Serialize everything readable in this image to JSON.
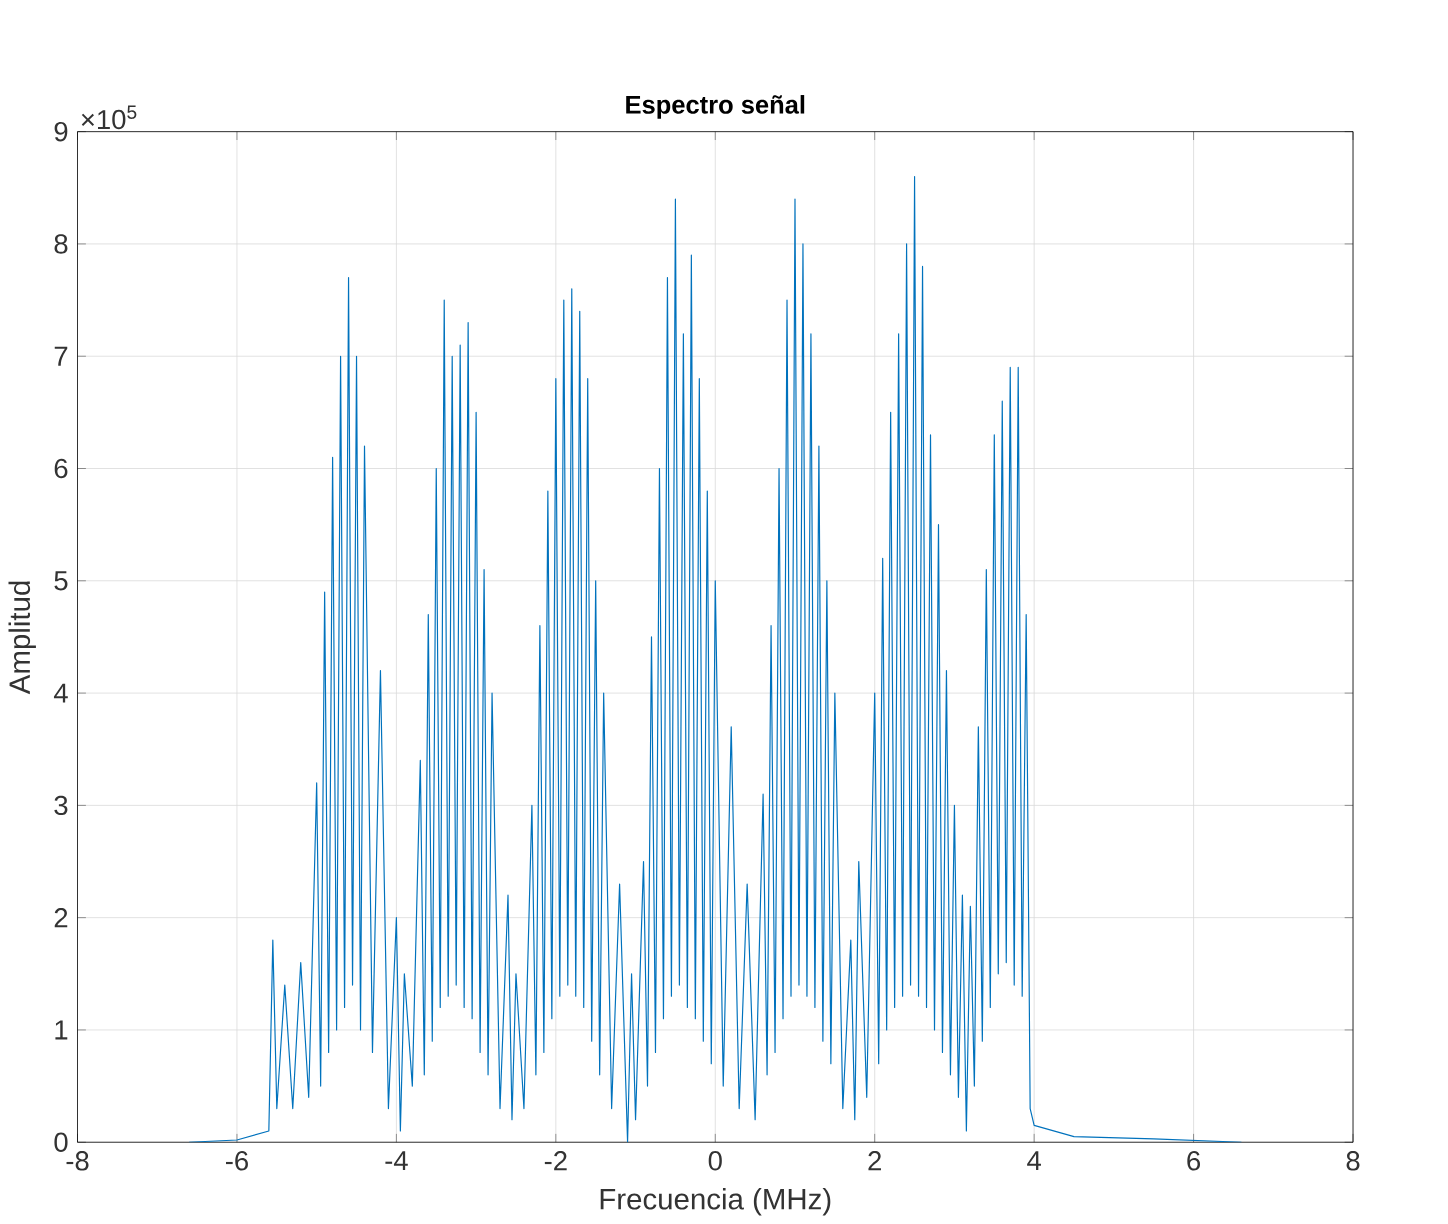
{
  "chart_data": {
    "type": "line",
    "title": "Espectro señal",
    "xlabel": "Frecuencia (MHz)",
    "ylabel": "Amplitud",
    "annotations": [
      "×10$^{5}$"
    ],
    "xlim": [
      -8,
      8
    ],
    "xticks": [
      -8,
      -6,
      -4,
      -2,
      0,
      2,
      4,
      6,
      8
    ],
    "ylim": [
      0,
      9
    ],
    "yticks": [
      0,
      1,
      2,
      3,
      4,
      5,
      6,
      7,
      8,
      9
    ],
    "grid": true,
    "series": [
      {
        "color": "#0072bd",
        "x": [
          -6.6,
          -6.0,
          -5.6,
          -5.55,
          -5.5,
          -5.4,
          -5.3,
          -5.2,
          -5.1,
          -5.0,
          -4.95,
          -4.9,
          -4.85,
          -4.8,
          -4.75,
          -4.7,
          -4.65,
          -4.6,
          -4.55,
          -4.5,
          -4.45,
          -4.4,
          -4.3,
          -4.2,
          -4.1,
          -4.0,
          -3.95,
          -3.9,
          -3.8,
          -3.7,
          -3.65,
          -3.6,
          -3.55,
          -3.5,
          -3.45,
          -3.4,
          -3.35,
          -3.3,
          -3.25,
          -3.2,
          -3.15,
          -3.1,
          -3.05,
          -3.0,
          -2.95,
          -2.9,
          -2.85,
          -2.8,
          -2.7,
          -2.6,
          -2.55,
          -2.5,
          -2.4,
          -2.3,
          -2.25,
          -2.2,
          -2.15,
          -2.1,
          -2.05,
          -2.0,
          -1.95,
          -1.9,
          -1.85,
          -1.8,
          -1.75,
          -1.7,
          -1.65,
          -1.6,
          -1.55,
          -1.5,
          -1.45,
          -1.4,
          -1.3,
          -1.2,
          -1.1,
          -1.05,
          -1.0,
          -0.9,
          -0.85,
          -0.8,
          -0.75,
          -0.7,
          -0.65,
          -0.6,
          -0.55,
          -0.5,
          -0.45,
          -0.4,
          -0.35,
          -0.3,
          -0.25,
          -0.2,
          -0.15,
          -0.1,
          -0.05,
          0.0,
          0.1,
          0.2,
          0.3,
          0.4,
          0.5,
          0.6,
          0.65,
          0.7,
          0.75,
          0.8,
          0.85,
          0.9,
          0.95,
          1.0,
          1.05,
          1.1,
          1.15,
          1.2,
          1.25,
          1.3,
          1.35,
          1.4,
          1.45,
          1.5,
          1.6,
          1.7,
          1.75,
          1.8,
          1.9,
          2.0,
          2.05,
          2.1,
          2.15,
          2.2,
          2.25,
          2.3,
          2.35,
          2.4,
          2.45,
          2.5,
          2.55,
          2.6,
          2.65,
          2.7,
          2.75,
          2.8,
          2.85,
          2.9,
          2.95,
          3.0,
          3.05,
          3.1,
          3.15,
          3.2,
          3.25,
          3.3,
          3.35,
          3.4,
          3.45,
          3.5,
          3.55,
          3.6,
          3.65,
          3.7,
          3.75,
          3.8,
          3.85,
          3.9,
          3.95,
          4.0,
          4.5,
          5.5,
          6.6
        ],
        "values": [
          0,
          0.02,
          0.1,
          1.8,
          0.3,
          1.4,
          0.3,
          1.6,
          0.4,
          3.2,
          0.5,
          4.9,
          0.8,
          6.1,
          1.0,
          7.0,
          1.2,
          7.7,
          1.4,
          7.0,
          1.0,
          6.2,
          0.8,
          4.2,
          0.3,
          2.0,
          0.1,
          1.5,
          0.5,
          3.4,
          0.6,
          4.7,
          0.9,
          6.0,
          1.2,
          7.5,
          1.3,
          7.0,
          1.4,
          7.1,
          1.2,
          7.3,
          1.1,
          6.5,
          0.8,
          5.1,
          0.6,
          4.0,
          0.3,
          2.2,
          0.2,
          1.5,
          0.3,
          3.0,
          0.6,
          4.6,
          0.8,
          5.8,
          1.1,
          6.8,
          1.3,
          7.5,
          1.4,
          7.6,
          1.3,
          7.4,
          1.2,
          6.8,
          0.9,
          5.0,
          0.6,
          4.0,
          0.3,
          2.3,
          0.0,
          1.5,
          0.2,
          2.5,
          0.5,
          4.5,
          0.8,
          6.0,
          1.1,
          7.7,
          1.3,
          8.4,
          1.4,
          7.2,
          1.2,
          7.9,
          1.1,
          6.8,
          0.9,
          5.8,
          0.7,
          5.0,
          0.5,
          3.7,
          0.3,
          2.3,
          0.2,
          3.1,
          0.6,
          4.6,
          0.8,
          6.0,
          1.1,
          7.5,
          1.3,
          8.4,
          1.4,
          8.0,
          1.3,
          7.2,
          1.2,
          6.2,
          0.9,
          5.0,
          0.7,
          4.0,
          0.3,
          1.8,
          0.2,
          2.5,
          0.4,
          4.0,
          0.7,
          5.2,
          1.0,
          6.5,
          1.2,
          7.2,
          1.3,
          8.0,
          1.4,
          8.6,
          1.3,
          7.8,
          1.2,
          6.3,
          1.0,
          5.5,
          0.8,
          4.2,
          0.6,
          3.0,
          0.4,
          2.2,
          0.1,
          2.1,
          0.5,
          3.7,
          0.9,
          5.1,
          1.2,
          6.3,
          1.5,
          6.6,
          1.6,
          6.9,
          1.4,
          6.9,
          1.3,
          4.7,
          0.3,
          0.15,
          0.05,
          0.03,
          0.0
        ]
      }
    ]
  }
}
